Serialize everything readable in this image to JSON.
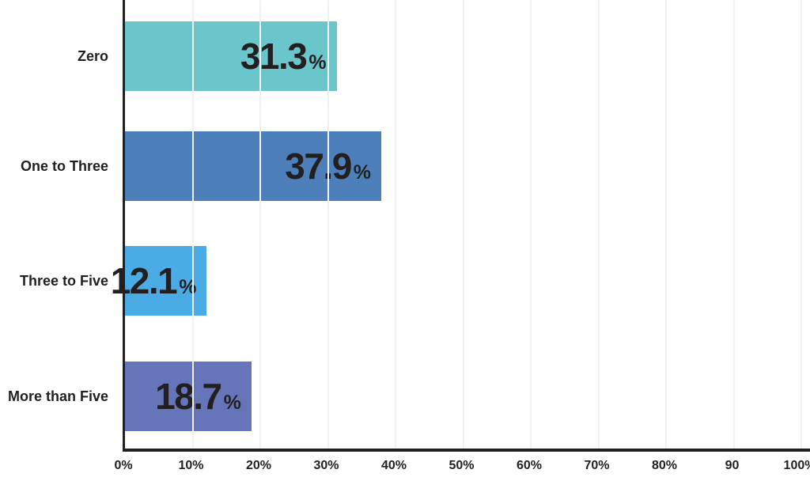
{
  "chart_data": {
    "type": "bar",
    "orientation": "horizontal",
    "title": "",
    "xlabel": "",
    "ylabel": "",
    "categories": [
      "Zero",
      "One to Three",
      "Three to Five",
      "More than Five"
    ],
    "values": [
      31.3,
      37.9,
      12.1,
      18.7
    ],
    "value_texts": [
      "31.3",
      "37.9",
      "12.1",
      "18.7"
    ],
    "unit": "%",
    "bar_colors": [
      "#6bc6cb",
      "#4d80ba",
      "#4babe4",
      "#6674b9"
    ],
    "x_ticks": [
      "0%",
      "10%",
      "20%",
      "30%",
      "40%",
      "50%",
      "60%",
      "70%",
      "80%",
      "90",
      "100%"
    ],
    "xlim": [
      0,
      100
    ],
    "grid": true,
    "legend": false,
    "colors": {
      "background": "#ffffff",
      "axis": "#231f20",
      "grid": "#f1f1f1",
      "text": "#231f20"
    }
  }
}
